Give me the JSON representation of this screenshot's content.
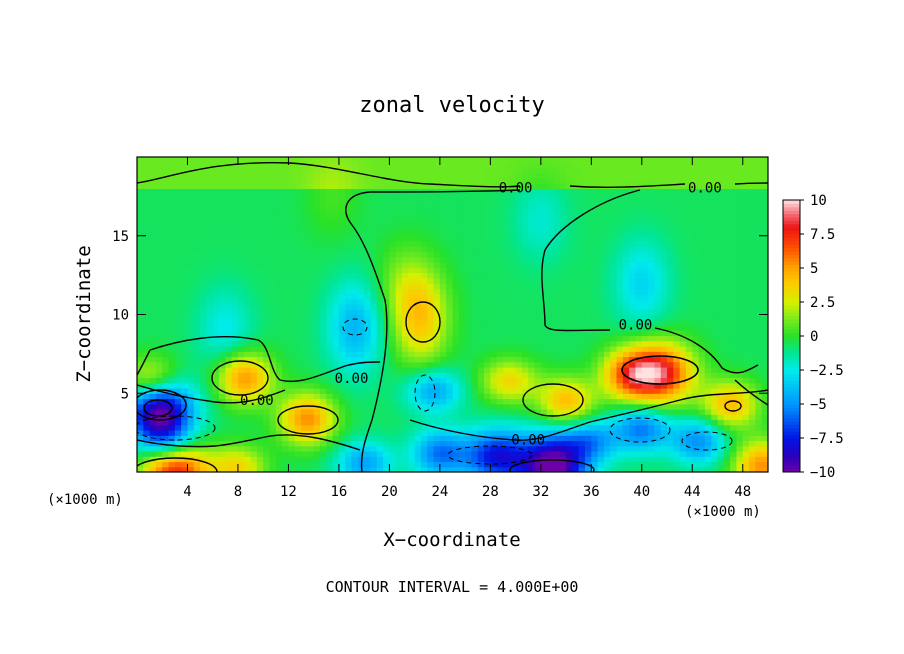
{
  "chart_data": {
    "type": "heatmap",
    "title": "zonal velocity",
    "xlabel": "X−coordinate",
    "ylabel": "Z−coordinate",
    "x_unit_left": "(×1000 m)",
    "x_unit_right": "(×1000 m)",
    "xlim": [
      0,
      50
    ],
    "ylim": [
      0,
      20
    ],
    "x_ticks": [
      4,
      8,
      12,
      16,
      20,
      24,
      28,
      32,
      36,
      40,
      44,
      48
    ],
    "x_tick_labels": [
      "4",
      "8",
      "12",
      "16",
      "20",
      "24",
      "28",
      "32",
      "36",
      "40",
      "44",
      "48"
    ],
    "y_ticks": [
      5,
      10,
      15
    ],
    "y_tick_labels": [
      "5",
      "10",
      "15"
    ],
    "colorbar": {
      "min": -10,
      "max": 10,
      "ticks": [
        10,
        7.5,
        5,
        2.5,
        0,
        -2.5,
        -5,
        -7.5,
        -10
      ],
      "tick_labels": [
        "10",
        "7.5",
        "5",
        "2.5",
        "0",
        "−2.5",
        "−5",
        "−7.5",
        "−10"
      ]
    },
    "contour_interval_text": "CONTOUR INTERVAL = 4.000E+00",
    "contour_labels": [
      {
        "text": "0.00",
        "x": 30,
        "y": 18
      },
      {
        "text": "0.00",
        "x": 45,
        "y": 18
      },
      {
        "text": "0.00",
        "x": 39.5,
        "y": 9.3
      },
      {
        "text": "0.00",
        "x": 17,
        "y": 5.9
      },
      {
        "text": "0.00",
        "x": 9.5,
        "y": 4.5
      },
      {
        "text": "0.00",
        "x": 31,
        "y": 2.0
      }
    ],
    "features": [
      {
        "x": 41.5,
        "z": 6.3,
        "value": 8.5
      },
      {
        "x": 39,
        "z": 6.2,
        "value": 6
      },
      {
        "x": 8.5,
        "z": 6.0,
        "value": 6
      },
      {
        "x": 13.5,
        "z": 3.4,
        "value": 6
      },
      {
        "x": 22.5,
        "z": 9.8,
        "value": 4.5
      },
      {
        "x": 34,
        "z": 4.5,
        "value": 5
      },
      {
        "x": 29.5,
        "z": 5.8,
        "value": 4
      },
      {
        "x": 47,
        "z": 4.3,
        "value": 5
      },
      {
        "x": 1.2,
        "z": 5.8,
        "value": 5
      },
      {
        "x": 1.8,
        "z": 3.9,
        "value": -10
      },
      {
        "x": 2.5,
        "z": 1.8,
        "value": -4
      },
      {
        "x": 3.0,
        "z": 0.2,
        "value": 9
      },
      {
        "x": 8,
        "z": 0.3,
        "value": 4
      },
      {
        "x": 33,
        "z": 0.3,
        "value": -10
      },
      {
        "x": 28.5,
        "z": 1.0,
        "value": -7
      },
      {
        "x": 24,
        "z": 1.2,
        "value": -5
      },
      {
        "x": 18,
        "z": 0.6,
        "value": -4
      },
      {
        "x": 44.5,
        "z": 2.0,
        "value": -4.5
      },
      {
        "x": 40,
        "z": 2.8,
        "value": -5
      },
      {
        "x": 36,
        "z": 2.0,
        "value": -4
      },
      {
        "x": 49.5,
        "z": 0.4,
        "value": 6
      },
      {
        "x": 17.3,
        "z": 9.2,
        "value": -3.5
      },
      {
        "x": 7,
        "z": 9.0,
        "value": -2
      },
      {
        "x": 23.5,
        "z": 5.2,
        "value": -4
      },
      {
        "x": 15.5,
        "z": 17.5,
        "value": 1
      },
      {
        "x": 32,
        "z": 16,
        "value": -1.5
      },
      {
        "x": 40,
        "z": 12,
        "value": -2.5
      },
      {
        "x": 21,
        "z": 12,
        "value": 1.5
      }
    ]
  }
}
